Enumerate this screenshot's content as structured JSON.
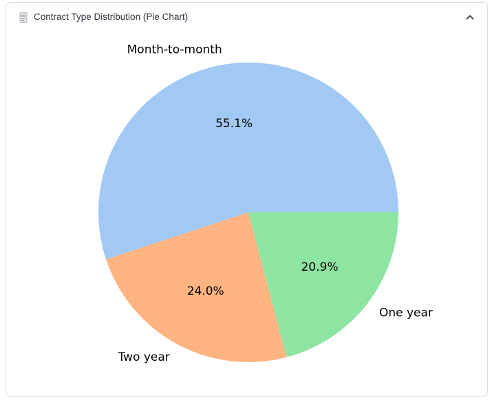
{
  "expander": {
    "icon": "document-icon",
    "title": "Contract Type Distribution (Pie Chart)",
    "collapse_icon": "chevron-up-icon"
  },
  "chart_data": {
    "type": "pie",
    "labels": [
      "Month-to-month",
      "Two year",
      "One year"
    ],
    "values": [
      55.1,
      24.0,
      20.9
    ],
    "value_labels": [
      "55.1%",
      "24.0%",
      "20.9%"
    ],
    "colors": [
      "#a1c9f4",
      "#ffb482",
      "#8de5a1"
    ],
    "start_angle_deg": 0,
    "direction": "counterclockwise"
  }
}
